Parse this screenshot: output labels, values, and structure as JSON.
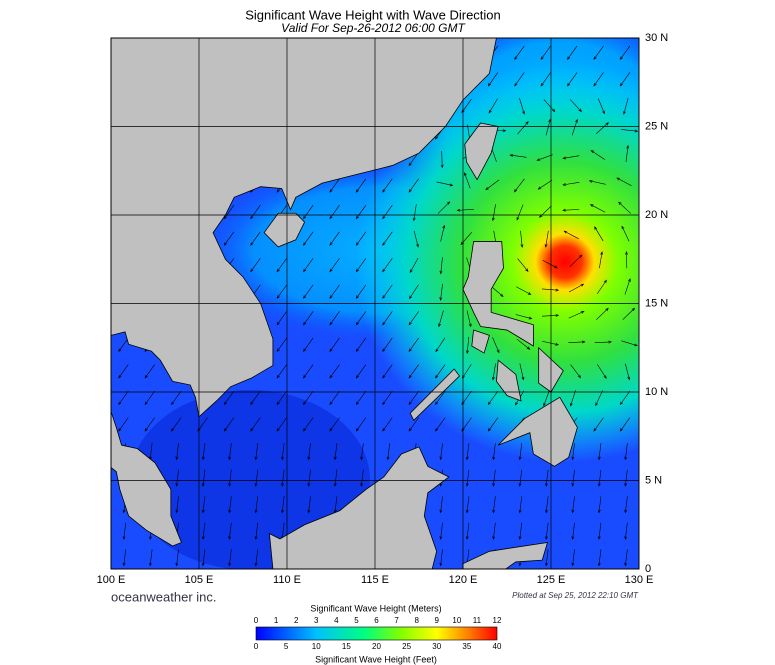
{
  "header": {
    "title": "Significant Wave Height with Wave Direction",
    "subtitle": "Valid For Sep-26-2012 06:00 GMT"
  },
  "map": {
    "lon_labels": [
      "100 E",
      "105 E",
      "110 E",
      "115 E",
      "120 E",
      "125 E",
      "130 E"
    ],
    "lat_labels": [
      "30 N",
      "25 N",
      "20 N",
      "15 N",
      "10 N",
      "5 N",
      "0"
    ]
  },
  "footer": {
    "brand": "oceanweather inc.",
    "plotted": "Plotted at Sep 25, 2012 22:10 GMT"
  },
  "colorbar": {
    "meters_title": "Significant Wave Height (Meters)",
    "meters_ticks": [
      0,
      1,
      2,
      3,
      4,
      5,
      6,
      7,
      8,
      9,
      10,
      11,
      12
    ],
    "feet_ticks": [
      0,
      5,
      10,
      15,
      20,
      25,
      30,
      35,
      40
    ],
    "feet_title": "Significant Wave Height (Feet)"
  }
}
